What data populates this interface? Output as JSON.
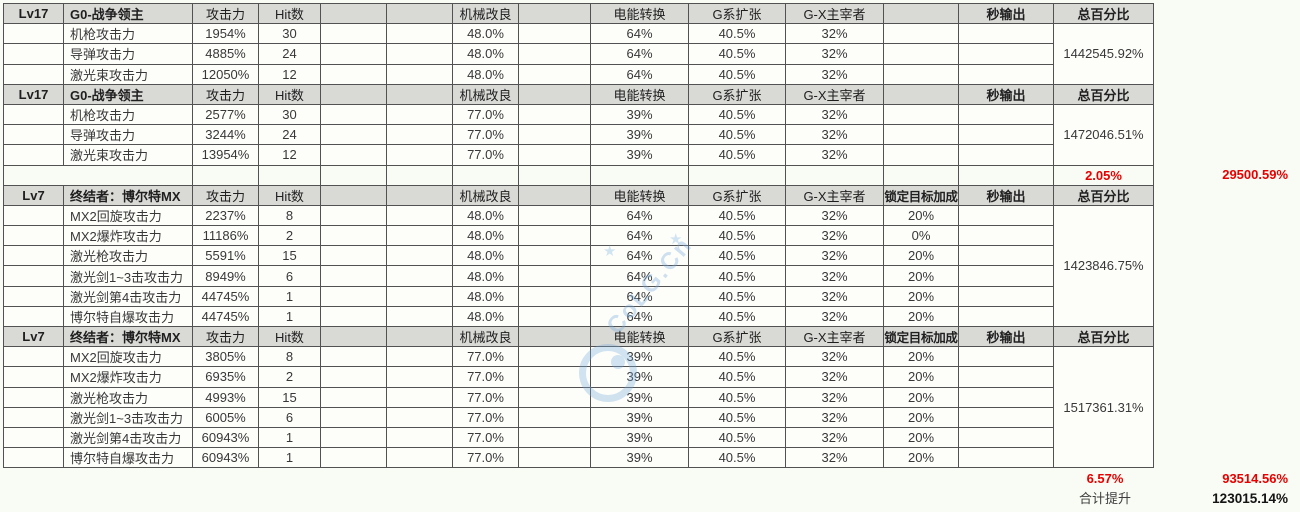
{
  "colors": {
    "page_bg": "#f9fcf4",
    "header_bg": "#d9d9d6",
    "accent_blue": "#2222cc",
    "accent_red": "#e80000",
    "grid_border": "#525252"
  },
  "table": {
    "headers": {
      "attack": "攻击力",
      "hits": "Hit数",
      "mech": "机械改良",
      "energy": "电能转换",
      "g_expand": "G系扩张",
      "gx": "G-X主宰者",
      "lock": "锁定目标加成",
      "dps": "秒输出",
      "total": "总百分比"
    }
  },
  "sections": [
    {
      "level": "Lv17",
      "name": "G0-战争领主",
      "lock_header": "",
      "rows": [
        {
          "label": "机枪攻击力",
          "attack": "1954%",
          "hits": "30",
          "mech": "48.0%",
          "energy": "64%",
          "g_expand": "40.5%",
          "gx": "32%",
          "lock": ""
        },
        {
          "label": "导弹攻击力",
          "attack": "4885%",
          "hits": "24",
          "mech": "48.0%",
          "energy": "64%",
          "g_expand": "40.5%",
          "gx": "32%",
          "lock": ""
        },
        {
          "label": "激光束攻击力",
          "attack": "12050%",
          "hits": "12",
          "mech": "48.0%",
          "energy": "64%",
          "g_expand": "40.5%",
          "gx": "32%",
          "lock": ""
        }
      ],
      "total": "1442545.92%"
    },
    {
      "level": "Lv17",
      "name": "G0-战争领主",
      "lock_header": "",
      "rows": [
        {
          "label": "机枪攻击力",
          "attack": "2577%",
          "hits": "30",
          "mech": "77.0%",
          "energy": "39%",
          "g_expand": "40.5%",
          "gx": "32%",
          "lock": ""
        },
        {
          "label": "导弹攻击力",
          "attack": "3244%",
          "hits": "24",
          "mech": "77.0%",
          "energy": "39%",
          "g_expand": "40.5%",
          "gx": "32%",
          "lock": ""
        },
        {
          "label": "激光束攻击力",
          "attack": "13954%",
          "hits": "12",
          "mech": "77.0%",
          "energy": "39%",
          "g_expand": "40.5%",
          "gx": "32%",
          "lock": ""
        }
      ],
      "total": "1472046.51%",
      "gap_after": {
        "pct": "2.05%",
        "outside_value": "29500.59%"
      }
    },
    {
      "level": "Lv7",
      "name": "终结者：博尔特MX",
      "lock_header": "锁定目标加成",
      "rows": [
        {
          "label": "MX2回旋攻击力",
          "attack": "2237%",
          "hits": "8",
          "mech": "48.0%",
          "energy": "64%",
          "g_expand": "40.5%",
          "gx": "32%",
          "lock": "20%"
        },
        {
          "label": "MX2爆炸攻击力",
          "attack": "11186%",
          "hits": "2",
          "mech": "48.0%",
          "energy": "64%",
          "g_expand": "40.5%",
          "gx": "32%",
          "lock": "0%"
        },
        {
          "label": "激光枪攻击力",
          "attack": "5591%",
          "hits": "15",
          "mech": "48.0%",
          "energy": "64%",
          "g_expand": "40.5%",
          "gx": "32%",
          "lock": "20%"
        },
        {
          "label": "激光剑1~3击攻击力",
          "attack": "8949%",
          "hits": "6",
          "mech": "48.0%",
          "energy": "64%",
          "g_expand": "40.5%",
          "gx": "32%",
          "lock": "20%"
        },
        {
          "label": "激光剑第4击攻击力",
          "attack": "44745%",
          "hits": "1",
          "mech": "48.0%",
          "energy": "64%",
          "g_expand": "40.5%",
          "gx": "32%",
          "lock": "20%"
        },
        {
          "label": "博尔特自爆攻击力",
          "attack": "44745%",
          "hits": "1",
          "mech": "48.0%",
          "energy": "64%",
          "g_expand": "40.5%",
          "gx": "32%",
          "lock": "20%"
        }
      ],
      "total": "1423846.75%"
    },
    {
      "level": "Lv7",
      "name": "终结者：博尔特MX",
      "lock_header": "锁定目标加成",
      "rows": [
        {
          "label": "MX2回旋攻击力",
          "attack": "3805%",
          "hits": "8",
          "mech": "77.0%",
          "energy": "39%",
          "g_expand": "40.5%",
          "gx": "32%",
          "lock": "20%"
        },
        {
          "label": "MX2爆炸攻击力",
          "attack": "6935%",
          "hits": "2",
          "mech": "77.0%",
          "energy": "39%",
          "g_expand": "40.5%",
          "gx": "32%",
          "lock": "20%"
        },
        {
          "label": "激光枪攻击力",
          "attack": "4993%",
          "hits": "15",
          "mech": "77.0%",
          "energy": "39%",
          "g_expand": "40.5%",
          "gx": "32%",
          "lock": "20%"
        },
        {
          "label": "激光剑1~3击攻击力",
          "attack": "6005%",
          "hits": "6",
          "mech": "77.0%",
          "energy": "39%",
          "g_expand": "40.5%",
          "gx": "32%",
          "lock": "20%"
        },
        {
          "label": "激光剑第4击攻击力",
          "attack": "60943%",
          "hits": "1",
          "mech": "77.0%",
          "energy": "39%",
          "g_expand": "40.5%",
          "gx": "32%",
          "lock": "20%"
        },
        {
          "label": "博尔特自爆攻击力",
          "attack": "60943%",
          "hits": "1",
          "mech": "77.0%",
          "energy": "39%",
          "g_expand": "40.5%",
          "gx": "32%",
          "lock": "20%"
        }
      ],
      "total": "1517361.31%"
    }
  ],
  "bottom_summary": {
    "pct": "6.57%",
    "outside_value": "93514.56%"
  },
  "footer": {
    "label": "合计提升",
    "value": "123015.14%"
  },
  "watermark": {
    "text": "CoLG.Cn",
    "star": "★"
  }
}
